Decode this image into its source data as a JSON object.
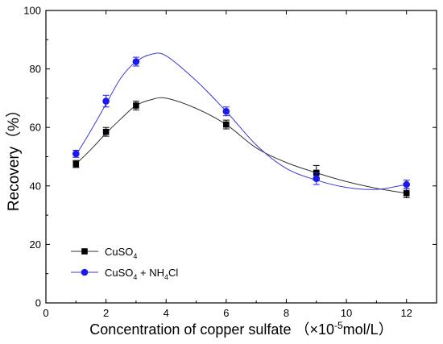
{
  "chart_data": {
    "type": "line",
    "xlabel": "Concentration of copper sulfate",
    "xlabel_unit_prefix": "（×10",
    "xlabel_unit_exp": "-5",
    "xlabel_unit_suffix": "mol/L）",
    "ylabel": "Recovery（%）",
    "xlim": [
      0,
      13
    ],
    "ylim": [
      0,
      100
    ],
    "xticks": [
      0,
      2,
      4,
      6,
      8,
      10,
      12
    ],
    "yticks": [
      0,
      20,
      40,
      60,
      80,
      100
    ],
    "legend_position": "bottom-left",
    "series": [
      {
        "name": "CuSO4",
        "legend_parts": [
          "CuSO",
          "4"
        ],
        "marker": "square",
        "color": "#000000",
        "line_color": "#333333",
        "x": [
          1,
          2,
          3,
          6,
          9,
          12
        ],
        "y": [
          47.5,
          58.5,
          67.5,
          61,
          44.5,
          37.5
        ],
        "err": [
          1.2,
          1.5,
          1.5,
          1.5,
          2.5,
          1.5
        ],
        "curve": [
          [
            1,
            47.5
          ],
          [
            1.5,
            52.5
          ],
          [
            2,
            58
          ],
          [
            2.5,
            63
          ],
          [
            3,
            67.5
          ],
          [
            3.5,
            69.5
          ],
          [
            4,
            70
          ],
          [
            5,
            66.5
          ],
          [
            6,
            61
          ],
          [
            7,
            53
          ],
          [
            8,
            48
          ],
          [
            9,
            44.5
          ],
          [
            10,
            41.5
          ],
          [
            11,
            39.2
          ],
          [
            12,
            37.5
          ]
        ]
      },
      {
        "name": "CuSO4 + NH4Cl",
        "legend_parts": [
          "CuSO",
          "4",
          " + NH",
          "4",
          "Cl"
        ],
        "marker": "circle",
        "color": "#1a1aee",
        "line_color": "#3b3bd8",
        "x": [
          1,
          2,
          3,
          6,
          9,
          12
        ],
        "y": [
          51,
          69,
          82.5,
          65.5,
          42.5,
          40.5
        ],
        "err": [
          1.2,
          2,
          1.5,
          1.5,
          2,
          1.5
        ],
        "curve": [
          [
            1,
            50.5
          ],
          [
            1.5,
            59
          ],
          [
            2,
            68
          ],
          [
            2.5,
            77
          ],
          [
            3,
            82.5
          ],
          [
            3.5,
            85
          ],
          [
            4,
            84.5
          ],
          [
            5,
            76
          ],
          [
            6,
            65.5
          ],
          [
            7,
            54
          ],
          [
            8,
            46
          ],
          [
            9,
            42
          ],
          [
            10,
            39.5
          ],
          [
            11,
            38.8
          ],
          [
            12,
            40.5
          ]
        ]
      }
    ]
  }
}
